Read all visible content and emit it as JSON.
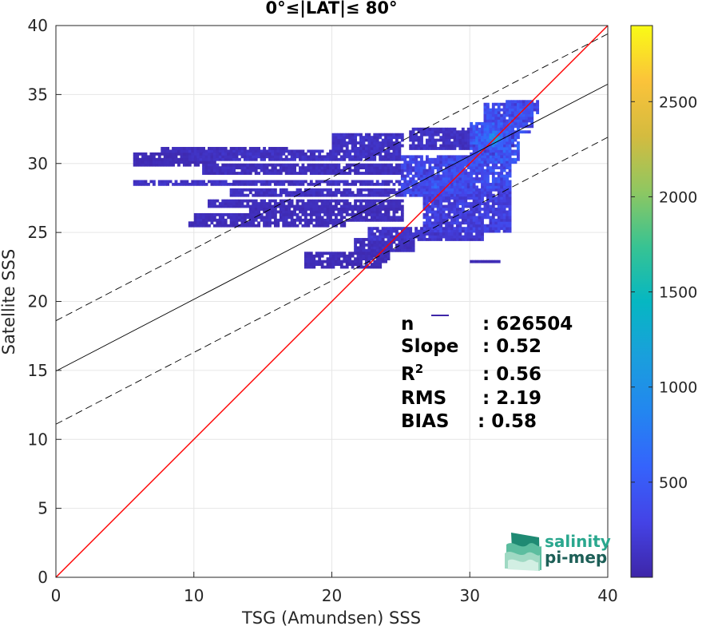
{
  "chart_data": {
    "type": "heatmap",
    "title": "0°≤|LAT|≤ 80°",
    "xlabel": "TSG (Amundsen) SSS",
    "ylabel": "Satellite SSS",
    "xlim": [
      0,
      40
    ],
    "ylim": [
      0,
      40
    ],
    "xticks": [
      0,
      10,
      20,
      30,
      40
    ],
    "yticks": [
      0,
      5,
      10,
      15,
      20,
      25,
      30,
      35,
      40
    ],
    "grid": true,
    "colorbar": {
      "colormap": "parula",
      "range": [
        0,
        2900
      ],
      "ticks": [
        500,
        1000,
        1500,
        2000,
        2500
      ]
    },
    "lines": [
      {
        "name": "1:1",
        "color": "#ff0000",
        "style": "solid",
        "x": [
          0,
          40
        ],
        "y": [
          0,
          40
        ]
      },
      {
        "name": "fit",
        "color": "#000000",
        "style": "solid",
        "x": [
          0,
          40
        ],
        "y": [
          14.95,
          35.75
        ]
      },
      {
        "name": "fit_upper",
        "color": "#000000",
        "style": "dashed",
        "x": [
          0,
          40
        ],
        "y": [
          18.6,
          39.4
        ]
      },
      {
        "name": "fit_lower",
        "color": "#000000",
        "style": "dashed",
        "x": [
          0,
          40
        ],
        "y": [
          11.1,
          31.9
        ]
      }
    ],
    "density_regions": [
      {
        "x": [
          5.5,
          11.5
        ],
        "y": [
          29.9,
          30.7
        ],
        "level": 60
      },
      {
        "x": [
          7.5,
          17
        ],
        "y": [
          30.7,
          31.2
        ],
        "level": 80
      },
      {
        "x": [
          5.5,
          25
        ],
        "y": [
          28.3,
          28.7
        ],
        "level": 120
      },
      {
        "x": [
          9.5,
          25
        ],
        "y": [
          30.2,
          30.9
        ],
        "level": 120
      },
      {
        "x": [
          10.5,
          25
        ],
        "y": [
          29.2,
          29.8
        ],
        "level": 90
      },
      {
        "x": [
          12.5,
          25
        ],
        "y": [
          27.6,
          28.1
        ],
        "level": 100
      },
      {
        "x": [
          11,
          25
        ],
        "y": [
          26.9,
          27.3
        ],
        "level": 80
      },
      {
        "x": [
          10,
          25
        ],
        "y": [
          25.8,
          26.3
        ],
        "level": 90
      },
      {
        "x": [
          9.5,
          21
        ],
        "y": [
          25.3,
          25.6
        ],
        "level": 70
      },
      {
        "x": [
          14,
          25
        ],
        "y": [
          26.3,
          26.8
        ],
        "level": 70
      },
      {
        "x": [
          20,
          25
        ],
        "y": [
          31.0,
          32.0
        ],
        "level": 120
      },
      {
        "x": [
          25.5,
          31
        ],
        "y": [
          31.0,
          32.5
        ],
        "level": 120
      },
      {
        "x": [
          25,
          30
        ],
        "y": [
          27.5,
          30.5
        ],
        "level": 300
      },
      {
        "x": [
          30,
          33.5
        ],
        "y": [
          30.0,
          33.0
        ],
        "level": 450
      },
      {
        "x": [
          31,
          34.5
        ],
        "y": [
          32.3,
          34.2
        ],
        "level": 350
      },
      {
        "x": [
          32.5,
          34.8
        ],
        "y": [
          33.5,
          34.5
        ],
        "level": 300
      },
      {
        "x": [
          26.5,
          33
        ],
        "y": [
          25.0,
          28.0
        ],
        "level": 250
      },
      {
        "x": [
          22.5,
          31
        ],
        "y": [
          24.3,
          25.3
        ],
        "level": 150
      },
      {
        "x": [
          21.5,
          26
        ],
        "y": [
          23.5,
          24.5
        ],
        "level": 90
      },
      {
        "x": [
          18,
          24
        ],
        "y": [
          22.8,
          23.5
        ],
        "level": 70
      },
      {
        "x": [
          18,
          23.5
        ],
        "y": [
          22.3,
          22.6
        ],
        "level": 60
      },
      {
        "x": [
          30,
          32
        ],
        "y": [
          22.8,
          23.0
        ],
        "level": 60
      },
      {
        "x": [
          28,
          33
        ],
        "y": [
          28.0,
          30.5
        ],
        "level": 350
      },
      {
        "x": [
          32,
          33
        ],
        "y": [
          27.0,
          28.5
        ],
        "level": 180
      }
    ],
    "hotspots": [
      {
        "x": 31.8,
        "y": 31.7,
        "r": 1.3,
        "level": 1200
      },
      {
        "x": 27.5,
        "y": 28.5,
        "r": 0.6,
        "level": 900
      },
      {
        "x": 33.5,
        "y": 33.6,
        "r": 0.8,
        "level": 800
      },
      {
        "x": 30.5,
        "y": 30.2,
        "r": 0.7,
        "level": 700
      }
    ],
    "stats": [
      {
        "label": "n",
        "value": ": 626504"
      },
      {
        "label": "Slope",
        "value": ": 0.52"
      },
      {
        "label": "R",
        "sup": "2",
        "value": ": 0.56"
      },
      {
        "label": "RMS",
        "value": ": 2.19"
      },
      {
        "label": "BIAS",
        "value": ": 0.58"
      }
    ]
  },
  "logo": {
    "line1": "salinity",
    "line2": "pi-mep"
  }
}
